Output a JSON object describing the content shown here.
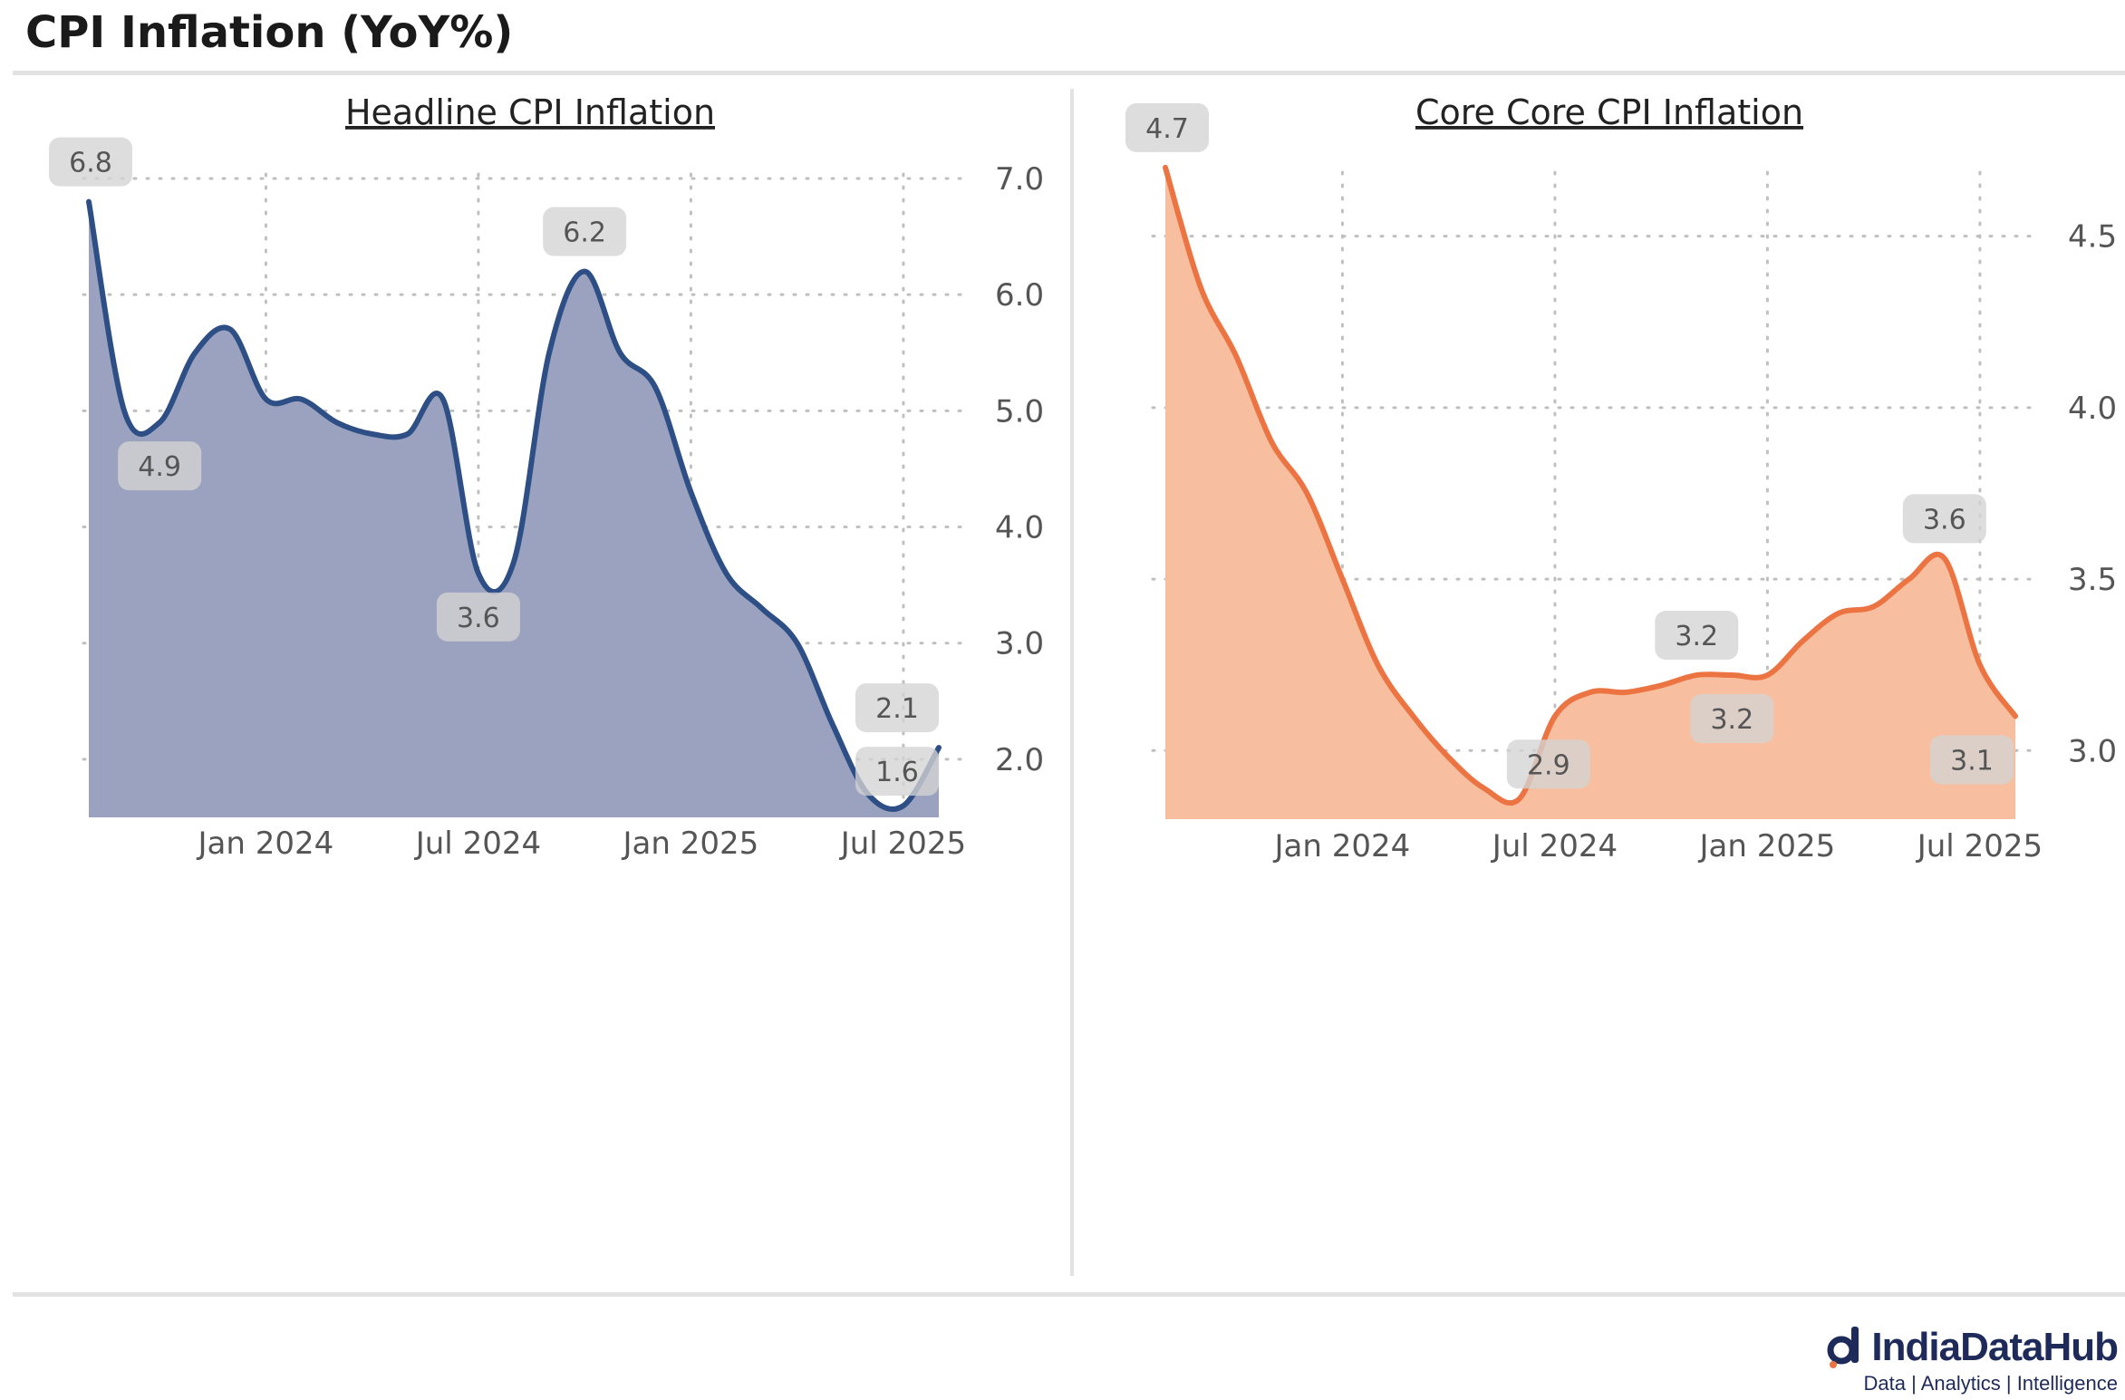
{
  "title": "CPI Inflation (YoY%)",
  "logo": {
    "name": "IndiaDataHub",
    "tagline": "Data | Analytics | Intelligence"
  },
  "colors": {
    "headline_line": "#2e4f86",
    "headline_fill": "#9aa2bf",
    "core_line": "#ec7442",
    "core_fill": "#f7bf9f",
    "grid": "#bfbfbf",
    "badge": "#d9d9d9"
  },
  "chart_data": [
    {
      "type": "area",
      "title": "Headline CPI Inflation",
      "x": [
        "2023-08",
        "2023-09",
        "2023-10",
        "2023-11",
        "2023-12",
        "2024-01",
        "2024-02",
        "2024-03",
        "2024-04",
        "2024-05",
        "2024-06",
        "2024-07",
        "2024-08",
        "2024-09",
        "2024-10",
        "2024-11",
        "2024-12",
        "2025-01",
        "2025-02",
        "2025-03",
        "2025-04",
        "2025-05",
        "2025-06",
        "2025-07",
        "2025-08"
      ],
      "values": [
        6.8,
        5.0,
        4.9,
        5.5,
        5.7,
        5.1,
        5.1,
        4.9,
        4.8,
        4.8,
        5.1,
        3.6,
        3.7,
        5.5,
        6.2,
        5.5,
        5.2,
        4.3,
        3.6,
        3.3,
        3.0,
        2.3,
        1.7,
        1.6,
        2.1
      ],
      "ylim": [
        1.5,
        7.0
      ],
      "yticks": [
        "2.0",
        "3.0",
        "4.0",
        "5.0",
        "6.0",
        "7.0"
      ],
      "xticks": [
        "Jan 2024",
        "Jul 2024",
        "Jan 2025",
        "Jul 2025"
      ],
      "annotations": [
        {
          "index": 0,
          "label": "6.8",
          "pos": "above"
        },
        {
          "index": 2,
          "label": "4.9",
          "pos": "below"
        },
        {
          "index": 11,
          "label": "3.6",
          "pos": "below"
        },
        {
          "index": 14,
          "label": "6.2",
          "pos": "above"
        },
        {
          "index": 24,
          "label": "2.1",
          "pos": "above"
        },
        {
          "index": 23,
          "label": "1.6",
          "pos": "right"
        }
      ]
    },
    {
      "type": "area",
      "title": "Core Core CPI Inflation",
      "x": [
        "2023-08",
        "2023-09",
        "2023-10",
        "2023-11",
        "2023-12",
        "2024-01",
        "2024-02",
        "2024-03",
        "2024-04",
        "2024-05",
        "2024-06",
        "2024-07",
        "2024-08",
        "2024-09",
        "2024-10",
        "2024-11",
        "2024-12",
        "2025-01",
        "2025-02",
        "2025-03",
        "2025-04",
        "2025-05",
        "2025-06",
        "2025-07",
        "2025-08"
      ],
      "values": [
        4.7,
        4.35,
        4.15,
        3.9,
        3.75,
        3.5,
        3.25,
        3.1,
        2.98,
        2.89,
        2.86,
        3.1,
        3.17,
        3.17,
        3.19,
        3.22,
        3.22,
        3.22,
        3.32,
        3.4,
        3.42,
        3.5,
        3.56,
        3.25,
        3.1
      ],
      "ylim": [
        2.8,
        4.75
      ],
      "yticks": [
        "3.0",
        "3.5",
        "4.0",
        "4.5"
      ],
      "xticks": [
        "Jan 2024",
        "Jul 2024",
        "Jan 2025",
        "Jul 2025"
      ],
      "annotations": [
        {
          "index": 0,
          "label": "4.7",
          "pos": "above"
        },
        {
          "index": 10,
          "label": "2.9",
          "pos": "right"
        },
        {
          "index": 15,
          "label": "3.2",
          "pos": "above"
        },
        {
          "index": 16,
          "label": "3.2",
          "pos": "below"
        },
        {
          "index": 22,
          "label": "3.6",
          "pos": "above"
        },
        {
          "index": 24,
          "label": "3.1",
          "pos": "below"
        }
      ]
    }
  ]
}
